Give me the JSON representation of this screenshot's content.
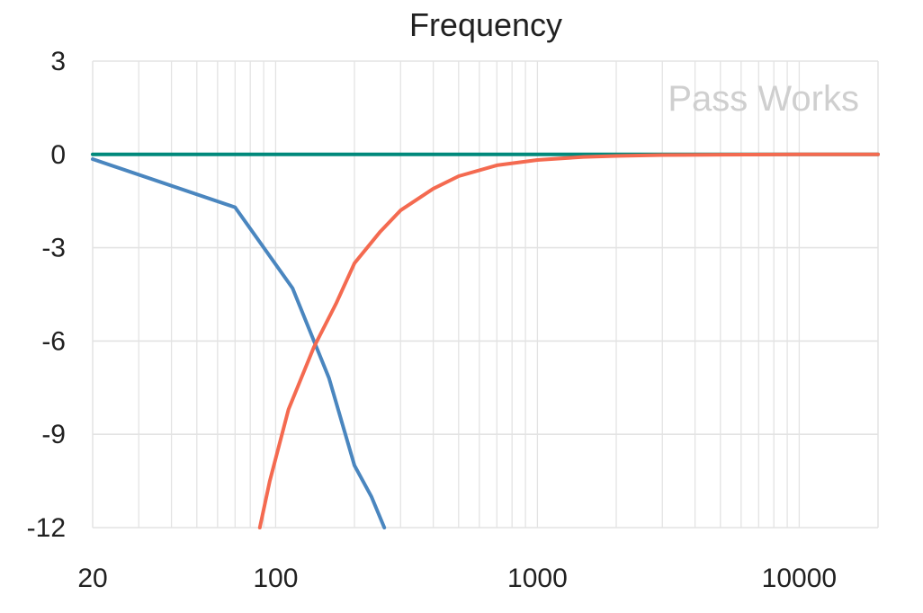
{
  "chart_data": {
    "type": "line",
    "title": "Frequency",
    "xlabel": "",
    "ylabel": "",
    "x_scale": "log",
    "xlim": [
      20,
      20000
    ],
    "ylim": [
      -12,
      3
    ],
    "grid": true,
    "x_ticks": [
      "20",
      "100",
      "1000",
      "10000"
    ],
    "y_ticks": [
      "3",
      "0",
      "-3",
      "-6",
      "-9",
      "-12"
    ],
    "annotation": "Pass Works",
    "series": [
      {
        "color": "#00897b",
        "x": [
          20,
          100,
          1000,
          10000,
          20000
        ],
        "y": [
          0,
          0,
          0,
          0,
          0
        ]
      },
      {
        "color": "#4a86bf",
        "x": [
          20,
          70,
          116,
          160,
          200,
          232,
          260
        ],
        "y": [
          -0.15,
          -1.7,
          -4.3,
          -7.2,
          -10.0,
          -11.0,
          -12.0
        ]
      },
      {
        "color": "#f46a50",
        "x": [
          87,
          95,
          112,
          140,
          170,
          200,
          250,
          300,
          400,
          500,
          700,
          1000,
          1500,
          2000,
          3000,
          5000,
          10000,
          20000
        ],
        "y": [
          -12.0,
          -10.5,
          -8.2,
          -6.2,
          -4.8,
          -3.5,
          -2.5,
          -1.8,
          -1.1,
          -0.7,
          -0.35,
          -0.18,
          -0.08,
          -0.05,
          -0.02,
          -0.01,
          0,
          0
        ]
      }
    ]
  }
}
